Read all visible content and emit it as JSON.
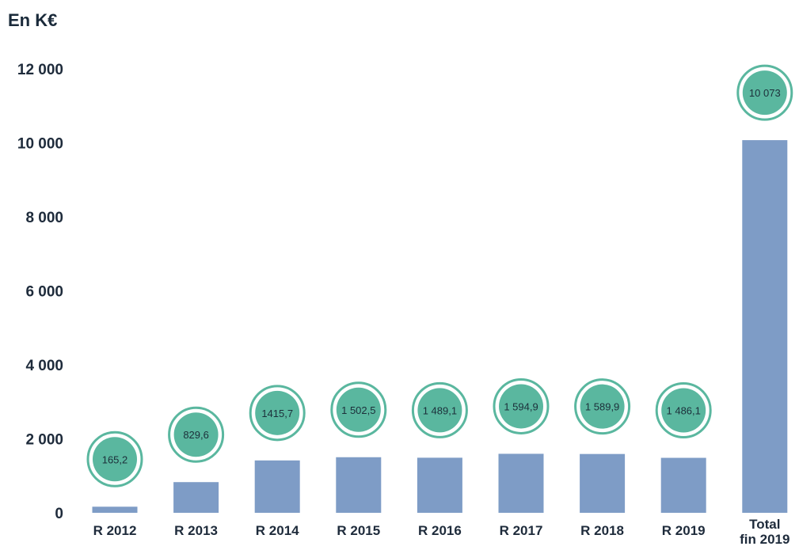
{
  "unit_label": "En K€",
  "colors": {
    "bar": "#7e9cc6",
    "badge_fill": "#5ab79f",
    "badge_ring": "#5ab79f",
    "text": "#1e2b3b"
  },
  "chart_data": {
    "type": "bar",
    "categories": [
      "R 2012",
      "R 2013",
      "R 2014",
      "R 2015",
      "R 2016",
      "R 2017",
      "R 2018",
      "R 2019",
      "Total fin 2019"
    ],
    "values": [
      165.2,
      829.6,
      1415.7,
      1502.5,
      1489.1,
      1594.9,
      1589.9,
      1486.1,
      10073
    ],
    "value_labels": [
      "165,2",
      "829,6",
      "1415,7",
      "1 502,5",
      "1 489,1",
      "1 594,9",
      "1 589,9",
      "1 486,1",
      "10 073"
    ],
    "ytick_labels": [
      "0",
      "2 000",
      "4 000",
      "6 000",
      "8 000",
      "10 000",
      "12 000"
    ],
    "yticks": [
      0,
      2000,
      4000,
      6000,
      8000,
      10000,
      12000
    ],
    "ylim": [
      0,
      12000
    ],
    "title": "",
    "xlabel": "",
    "ylabel": "",
    "grid": false,
    "legend": "none"
  }
}
